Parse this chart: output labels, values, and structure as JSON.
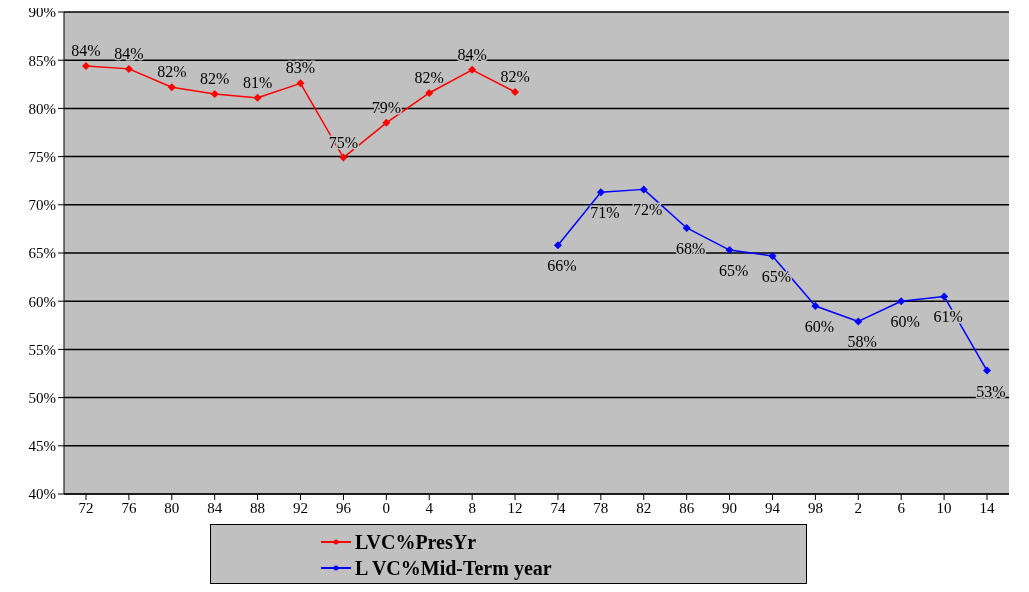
{
  "chart_data": {
    "type": "line",
    "categories": [
      "72",
      "76",
      "80",
      "84",
      "88",
      "92",
      "96",
      "0",
      "4",
      "8",
      "12",
      "74",
      "78",
      "82",
      "86",
      "90",
      "94",
      "98",
      "2",
      "6",
      "10",
      "14"
    ],
    "series": [
      {
        "name": "LVC%PresYr",
        "color": "#ff0000",
        "values": [
          84.4,
          84.1,
          82.2,
          81.5,
          81.1,
          82.6,
          74.9,
          78.5,
          81.6,
          84.0,
          81.7,
          null,
          null,
          null,
          null,
          null,
          null,
          null,
          null,
          null,
          null,
          null
        ],
        "value_labels": [
          "84%",
          "84%",
          "82%",
          "82%",
          "81%",
          "83%",
          "75%",
          "79%",
          "82%",
          "84%",
          "82%",
          null,
          null,
          null,
          null,
          null,
          null,
          null,
          null,
          null,
          null,
          null
        ]
      },
      {
        "name": "L VC%Mid-Term year",
        "color": "#0000ff",
        "values": [
          null,
          null,
          null,
          null,
          null,
          null,
          null,
          null,
          null,
          null,
          null,
          65.8,
          71.3,
          71.6,
          67.6,
          65.3,
          64.7,
          59.5,
          57.9,
          60.0,
          60.5,
          52.8
        ],
        "value_labels": [
          null,
          null,
          null,
          null,
          null,
          null,
          null,
          null,
          null,
          null,
          null,
          "66%",
          "71%",
          "72%",
          "68%",
          "65%",
          "65%",
          "60%",
          "58%",
          "60%",
          "61%",
          "53%"
        ]
      }
    ],
    "ylim": [
      40,
      90
    ],
    "yticks": [
      {
        "value": 40,
        "label": "40%"
      },
      {
        "value": 45,
        "label": "45%"
      },
      {
        "value": 50,
        "label": "50%"
      },
      {
        "value": 55,
        "label": "55%"
      },
      {
        "value": 60,
        "label": "60%"
      },
      {
        "value": 65,
        "label": "65%"
      },
      {
        "value": 70,
        "label": "70%"
      },
      {
        "value": 75,
        "label": "75%"
      },
      {
        "value": 80,
        "label": "80%"
      },
      {
        "value": 85,
        "label": "85%"
      },
      {
        "value": 90,
        "label": "90%"
      }
    ],
    "grid": "y",
    "legend": "bottom",
    "marker": "diamond",
    "line_style": "solid"
  }
}
